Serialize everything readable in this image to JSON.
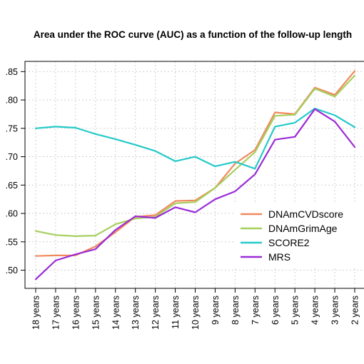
{
  "chart_data": {
    "type": "line",
    "title": "Area under the ROC curve (AUC) as a function of the follow-up length",
    "xlabel": "",
    "ylabel": "",
    "categories": [
      "18 years",
      "17 years",
      "16 years",
      "15 years",
      "14 years",
      "13 years",
      "12 years",
      "11 years",
      "10 years",
      "9 years",
      "8 years",
      "7 years",
      "6 years",
      "5 years",
      "4 years",
      "3 years",
      "2 years"
    ],
    "y_tick_labels": [
      ".50",
      ".55",
      ".60",
      ".65",
      ".70",
      ".75",
      ".80",
      ".85"
    ],
    "ylim": [
      0.468,
      0.868
    ],
    "grid": true,
    "legend_position": "right",
    "series": [
      {
        "name": "DNAmCVDscore",
        "color": "#F08A5E",
        "values": [
          0.525,
          0.526,
          0.526,
          0.542,
          0.567,
          0.594,
          0.597,
          0.622,
          0.623,
          0.645,
          0.688,
          0.712,
          0.778,
          0.775,
          0.822,
          0.809,
          0.851
        ]
      },
      {
        "name": "DNAmGrimAge",
        "color": "#A6CF5E",
        "values": [
          0.569,
          0.562,
          0.56,
          0.561,
          0.581,
          0.591,
          0.594,
          0.618,
          0.62,
          0.645,
          0.677,
          0.708,
          0.772,
          0.774,
          0.82,
          0.806,
          0.843
        ]
      },
      {
        "name": "SCORE2",
        "color": "#26C9C9",
        "values": [
          0.75,
          0.753,
          0.751,
          0.74,
          0.731,
          0.721,
          0.71,
          0.692,
          0.7,
          0.683,
          0.691,
          0.679,
          0.753,
          0.76,
          0.785,
          0.773,
          0.752
        ]
      },
      {
        "name": "MRS",
        "color": "#9B2BD6",
        "values": [
          0.484,
          0.517,
          0.528,
          0.537,
          0.571,
          0.595,
          0.592,
          0.611,
          0.602,
          0.625,
          0.639,
          0.669,
          0.73,
          0.735,
          0.784,
          0.762,
          0.717
        ]
      }
    ]
  }
}
